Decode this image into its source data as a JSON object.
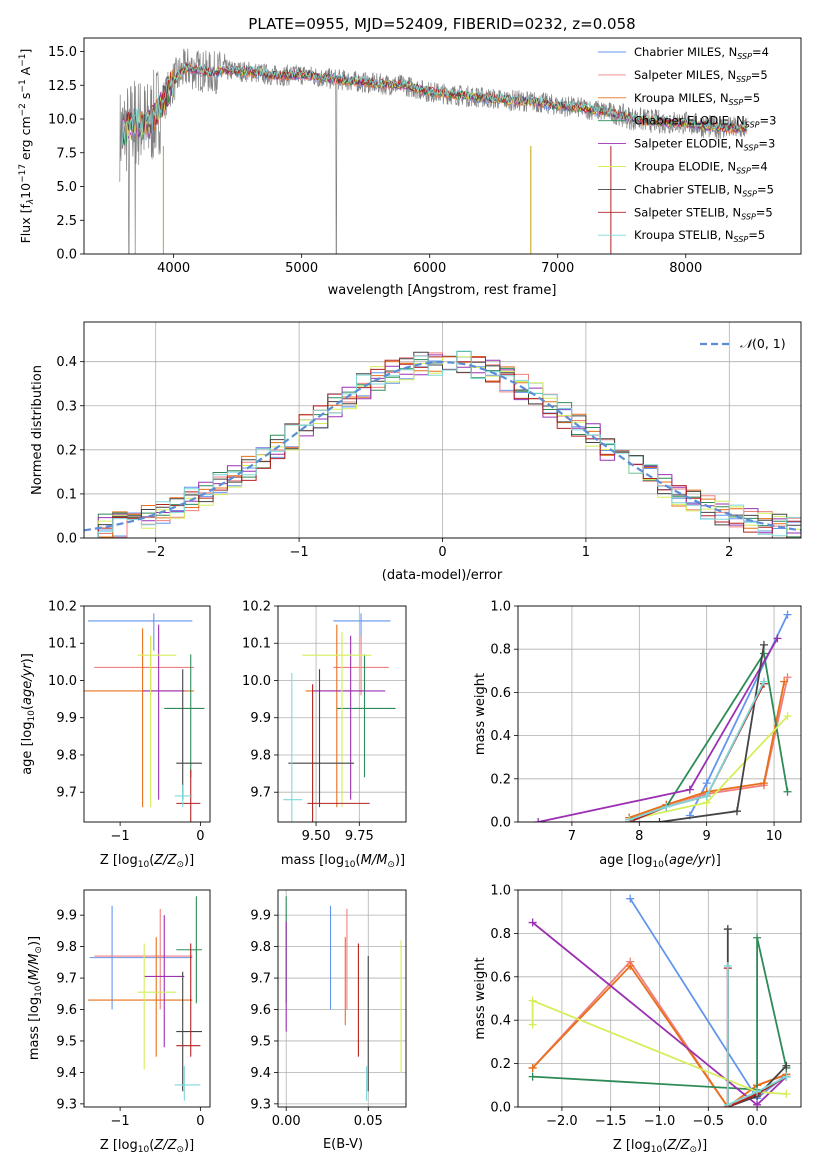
{
  "colors": [
    "#6495ed",
    "#f08080",
    "#e8701a",
    "#2e8b57",
    "#9b30b3",
    "#d6ee5a",
    "#444444",
    "#b22222",
    "#7fd8d8"
  ],
  "chart_data": [
    {
      "id": "spectrum",
      "type": "line",
      "title": "PLATE=0955, MJD=52409, FIBERID=0232, z=0.058",
      "xlabel": "wavelength [Angstrom, rest frame]",
      "ylabel": "Flux [fλ10⁻¹⁷ erg cm⁻² s⁻¹ A⁻¹]",
      "xlim": [
        3300,
        8900
      ],
      "ylim": [
        0,
        16
      ],
      "xticks": [
        4000,
        5000,
        6000,
        7000,
        8000
      ],
      "yticks": [
        0.0,
        2.5,
        5.0,
        7.5,
        10.0,
        12.5,
        15.0
      ],
      "grid": false,
      "legend_position": "top-right",
      "legend": [
        {
          "name": "Chabrier MILES, N",
          "sub": "SSP",
          "tail": "=4"
        },
        {
          "name": "Salpeter MILES, N",
          "sub": "SSP",
          "tail": "=5"
        },
        {
          "name": "Kroupa MILES, N",
          "sub": "SSP",
          "tail": "=5"
        },
        {
          "name": "Chabrier ELODIE, N",
          "sub": "SSP",
          "tail": "=3"
        },
        {
          "name": "Salpeter ELODIE, N",
          "sub": "SSP",
          "tail": "=3"
        },
        {
          "name": "Kroupa ELODIE, N",
          "sub": "SSP",
          "tail": "=4"
        },
        {
          "name": "Chabrier STELIB, N",
          "sub": "SSP",
          "tail": "=5"
        },
        {
          "name": "Salpeter STELIB, N",
          "sub": "SSP",
          "tail": "=5"
        },
        {
          "name": "Kroupa STELIB, N",
          "sub": "SSP",
          "tail": "=5"
        }
      ],
      "data_trend": {
        "wavelength": [
          3600,
          3700,
          3800,
          3900,
          4000,
          4100,
          4200,
          4300,
          4400,
          4600,
          4800,
          5000,
          5200,
          5400,
          5600,
          5800,
          6000,
          6200,
          6400,
          6600,
          6800,
          7000,
          7200,
          7400,
          7600,
          7800,
          8000,
          8200,
          8400
        ],
        "flux": [
          9.0,
          9.8,
          9.5,
          11.0,
          12.8,
          13.8,
          13.6,
          13.4,
          13.6,
          13.5,
          13.2,
          13.3,
          13.0,
          12.8,
          12.6,
          12.5,
          12.0,
          11.8,
          11.6,
          11.4,
          11.3,
          11.0,
          10.8,
          10.5,
          10.0,
          9.8,
          9.7,
          9.4,
          9.3
        ]
      }
    },
    {
      "id": "residuals",
      "type": "bar",
      "xlabel": "(data-model)/error",
      "ylabel": "Normed distribution",
      "xlim": [
        -2.5,
        2.5
      ],
      "ylim": [
        0,
        0.49
      ],
      "xticks": [
        -2,
        -1,
        0,
        1,
        2
      ],
      "yticks": [
        0.0,
        0.1,
        0.2,
        0.3,
        0.4
      ],
      "grid": true,
      "legend_position": "top-right",
      "legend_label": "N(0,1)",
      "bin_width": 0.1
    },
    {
      "id": "age-vs-Z",
      "type": "scatter",
      "xlabel": "Z [log10(Z/Z⊙)]",
      "ylabel": "age  [log10(age/yr)]",
      "xlim": [
        -1.45,
        0.12
      ],
      "ylim": [
        9.62,
        10.2
      ],
      "xticks": [
        -1,
        0
      ],
      "yticks": [
        9.7,
        9.8,
        9.9,
        10.0,
        10.1,
        10.2
      ],
      "grid": false,
      "points": [
        {
          "x": -0.58,
          "xlo": -1.4,
          "xhi": -0.1,
          "y": 10.16,
          "ylo": 10.08,
          "yhi": 10.18
        },
        {
          "x": -0.62,
          "xlo": -1.32,
          "xhi": -0.08,
          "y": 10.035,
          "ylo": 9.96,
          "yhi": 10.12
        },
        {
          "x": -0.72,
          "xlo": -1.45,
          "xhi": -0.08,
          "y": 9.972,
          "ylo": 9.66,
          "yhi": 10.14
        },
        {
          "x": -0.12,
          "xlo": -0.45,
          "xhi": 0.05,
          "y": 9.925,
          "ylo": 9.74,
          "yhi": 10.07
        },
        {
          "x": -0.52,
          "xlo": -0.72,
          "xhi": -0.2,
          "y": 9.972,
          "ylo": 9.68,
          "yhi": 10.15
        },
        {
          "x": -0.62,
          "xlo": -0.78,
          "xhi": -0.3,
          "y": 10.068,
          "ylo": 9.66,
          "yhi": 10.12
        },
        {
          "x": -0.22,
          "xlo": -0.3,
          "xhi": 0.02,
          "y": 9.778,
          "ylo": 9.68,
          "yhi": 10.03
        },
        {
          "x": -0.12,
          "xlo": -0.3,
          "xhi": 0.0,
          "y": 9.67,
          "ylo": 9.62,
          "yhi": 9.76
        },
        {
          "x": -0.22,
          "xlo": -0.32,
          "xhi": -0.1,
          "y": 9.69,
          "ylo": 9.66,
          "yhi": 9.72
        }
      ]
    },
    {
      "id": "age-vs-mass",
      "type": "scatter",
      "xlabel": "mass [log10(M/M⊙)]",
      "ylabel": "",
      "xlim": [
        9.28,
        10.02
      ],
      "ylim": [
        9.62,
        10.2
      ],
      "xticks": [
        9.5,
        9.75
      ],
      "yticks": [
        9.7,
        9.8,
        9.9,
        10.0,
        10.1,
        10.2
      ],
      "grid": true,
      "points": [
        {
          "x": 9.76,
          "xlo": 9.6,
          "xhi": 9.93,
          "y": 10.16,
          "ylo": 10.08,
          "yhi": 10.18
        },
        {
          "x": 9.76,
          "xlo": 9.6,
          "xhi": 9.92,
          "y": 10.035,
          "ylo": 9.96,
          "yhi": 10.12
        },
        {
          "x": 9.62,
          "xlo": 9.44,
          "xhi": 9.78,
          "y": 9.972,
          "ylo": 9.66,
          "yhi": 10.15
        },
        {
          "x": 9.78,
          "xlo": 9.62,
          "xhi": 9.96,
          "y": 9.925,
          "ylo": 9.74,
          "yhi": 10.07
        },
        {
          "x": 9.7,
          "xlo": 9.48,
          "xhi": 9.9,
          "y": 9.972,
          "ylo": 9.68,
          "yhi": 10.12
        },
        {
          "x": 9.65,
          "xlo": 9.42,
          "xhi": 9.82,
          "y": 10.068,
          "ylo": 9.66,
          "yhi": 10.13
        },
        {
          "x": 9.52,
          "xlo": 9.34,
          "xhi": 9.72,
          "y": 9.778,
          "ylo": 9.66,
          "yhi": 10.03
        },
        {
          "x": 9.48,
          "xlo": 9.45,
          "xhi": 9.81,
          "y": 9.67,
          "ylo": 9.62,
          "yhi": 9.99
        },
        {
          "x": 9.36,
          "xlo": 9.31,
          "xhi": 9.42,
          "y": 9.68,
          "ylo": 9.62,
          "yhi": 10.02
        }
      ]
    },
    {
      "id": "weight-vs-age",
      "type": "line",
      "xlabel": "age  [log10(age/yr)]",
      "ylabel": "mass weight",
      "xlim": [
        6.2,
        10.4
      ],
      "ylim": [
        0,
        1
      ],
      "xticks": [
        7,
        8,
        9,
        10
      ],
      "yticks": [
        0.0,
        0.2,
        0.4,
        0.6,
        0.8,
        1.0
      ],
      "grid": true,
      "series": [
        {
          "x": [
            8.75,
            9.0,
            10.2
          ],
          "y": [
            0.03,
            0.18,
            0.96
          ]
        },
        {
          "x": [
            7.85,
            8.4,
            9.0,
            9.85,
            10.2
          ],
          "y": [
            0.02,
            0.08,
            0.13,
            0.17,
            0.67
          ]
        },
        {
          "x": [
            7.85,
            8.4,
            9.0,
            9.85,
            10.15
          ],
          "y": [
            0.02,
            0.08,
            0.14,
            0.18,
            0.65
          ]
        },
        {
          "x": [
            7.85,
            8.4,
            9.85,
            10.2
          ],
          "y": [
            0.01,
            0.07,
            0.78,
            0.14
          ]
        },
        {
          "x": [
            6.5,
            8.75,
            10.05
          ],
          "y": [
            0.0,
            0.15,
            0.85
          ]
        },
        {
          "x": [
            7.85,
            9.0,
            10.2
          ],
          "y": [
            0.01,
            0.09,
            0.49
          ]
        },
        {
          "x": [
            7.85,
            8.3,
            9.45,
            9.85
          ],
          "y": [
            0.0,
            0.0,
            0.05,
            0.82
          ]
        },
        {
          "x": [
            7.85,
            8.4,
            9.0,
            9.85
          ],
          "y": [
            0.0,
            0.07,
            0.12,
            0.64
          ]
        },
        {
          "x": [
            7.85,
            8.4,
            9.0,
            9.85
          ],
          "y": [
            0.01,
            0.07,
            0.12,
            0.65
          ]
        }
      ]
    },
    {
      "id": "mass-vs-Z",
      "type": "scatter",
      "xlabel": "Z [log10(Z/Z⊙)]",
      "ylabel": "mass [log10(M/M⊙)]",
      "xlim": [
        -1.45,
        0.12
      ],
      "ylim": [
        9.29,
        9.98
      ],
      "xticks": [
        -1,
        0
      ],
      "yticks": [
        9.3,
        9.4,
        9.5,
        9.6,
        9.7,
        9.8,
        9.9
      ],
      "grid": false,
      "points": [
        {
          "x": -1.1,
          "xlo": -1.38,
          "xhi": -0.1,
          "y": 9.765,
          "ylo": 9.6,
          "yhi": 9.93
        },
        {
          "x": -0.5,
          "xlo": -1.32,
          "xhi": -0.1,
          "y": 9.77,
          "ylo": 9.6,
          "yhi": 9.92
        },
        {
          "x": -0.55,
          "xlo": -1.4,
          "xhi": -0.1,
          "y": 9.63,
          "ylo": 9.45,
          "yhi": 9.83
        },
        {
          "x": -0.05,
          "xlo": -0.3,
          "xhi": 0.02,
          "y": 9.79,
          "ylo": 9.62,
          "yhi": 9.96
        },
        {
          "x": -0.45,
          "xlo": -0.7,
          "xhi": -0.2,
          "y": 9.705,
          "ylo": 9.48,
          "yhi": 9.9
        },
        {
          "x": -0.7,
          "xlo": -0.78,
          "xhi": -0.3,
          "y": 9.655,
          "ylo": 9.41,
          "yhi": 9.81
        },
        {
          "x": -0.22,
          "xlo": -0.3,
          "xhi": 0.02,
          "y": 9.53,
          "ylo": 9.34,
          "yhi": 9.72
        },
        {
          "x": -0.12,
          "xlo": -0.3,
          "xhi": 0.0,
          "y": 9.485,
          "ylo": 9.45,
          "yhi": 9.81
        },
        {
          "x": -0.2,
          "xlo": -0.32,
          "xhi": 0.0,
          "y": 9.36,
          "ylo": 9.31,
          "yhi": 9.42
        }
      ]
    },
    {
      "id": "mass-vs-ebv",
      "type": "scatter",
      "xlabel": "E(B-V)",
      "ylabel": "",
      "xlim": [
        -0.005,
        0.073
      ],
      "ylim": [
        9.29,
        9.98
      ],
      "xticks": [
        0.0,
        0.05
      ],
      "yticks": [
        9.3,
        9.4,
        9.5,
        9.6,
        9.7,
        9.8,
        9.9
      ],
      "grid": true,
      "points": [
        {
          "x": 0.027,
          "y": 9.765,
          "ylo": 9.6,
          "yhi": 9.93
        },
        {
          "x": 0.037,
          "y": 9.77,
          "ylo": 9.6,
          "yhi": 9.92
        },
        {
          "x": 0.036,
          "y": 9.63,
          "ylo": 9.55,
          "yhi": 9.83
        },
        {
          "x": 0.0,
          "y": 9.79,
          "ylo": 9.62,
          "yhi": 9.96
        },
        {
          "x": 0.0,
          "y": 9.705,
          "ylo": 9.53,
          "yhi": 9.88
        },
        {
          "x": 0.07,
          "y": 9.655,
          "ylo": 9.4,
          "yhi": 9.82
        },
        {
          "x": 0.05,
          "y": 9.53,
          "ylo": 9.34,
          "yhi": 9.77
        },
        {
          "x": 0.044,
          "y": 9.485,
          "ylo": 9.45,
          "yhi": 9.81
        },
        {
          "x": 0.049,
          "y": 9.36,
          "ylo": 9.31,
          "yhi": 9.42
        }
      ]
    },
    {
      "id": "weight-vs-Z",
      "type": "line",
      "xlabel": "Z [log10(Z/Z⊙)]",
      "ylabel": "mass weight",
      "xlim": [
        -2.45,
        0.45
      ],
      "ylim": [
        0,
        1
      ],
      "xticks": [
        -2.0,
        -1.5,
        -1.0,
        -0.5,
        0.0
      ],
      "yticks": [
        0.0,
        0.2,
        0.4,
        0.6,
        0.8,
        1.0
      ],
      "grid": true,
      "series": [
        {
          "x": [
            -1.3,
            0.0,
            0.3
          ],
          "y": [
            0.96,
            0.04,
            0.15
          ]
        },
        {
          "x": [
            -2.3,
            -1.3,
            -0.3,
            0.0,
            0.3
          ],
          "y": [
            0.18,
            0.67,
            0.0,
            0.1,
            0.15
          ]
        },
        {
          "x": [
            -2.3,
            -1.3,
            -0.3,
            0.0,
            0.3
          ],
          "y": [
            0.18,
            0.65,
            0.0,
            0.1,
            0.15
          ]
        },
        {
          "x": [
            -2.3,
            0.0,
            0.0,
            0.3
          ],
          "y": [
            0.14,
            0.08,
            0.78,
            0.18
          ]
        },
        {
          "x": [
            -2.3,
            0.0,
            0.3
          ],
          "y": [
            0.85,
            0.01,
            0.14
          ]
        },
        {
          "x": [
            -2.3,
            -2.3,
            0.0,
            0.3
          ],
          "y": [
            0.38,
            0.49,
            0.07,
            0.06
          ]
        },
        {
          "x": [
            -0.3,
            -0.3,
            0.0,
            0.3
          ],
          "y": [
            0.82,
            0.0,
            0.05,
            0.19
          ]
        },
        {
          "x": [
            -0.3,
            -0.3,
            0.0,
            0.3
          ],
          "y": [
            0.64,
            0.0,
            0.06,
            0.14
          ]
        },
        {
          "x": [
            -0.3,
            -0.3,
            0.0,
            0.3
          ],
          "y": [
            0.65,
            0.01,
            0.07,
            0.14
          ]
        }
      ]
    }
  ]
}
